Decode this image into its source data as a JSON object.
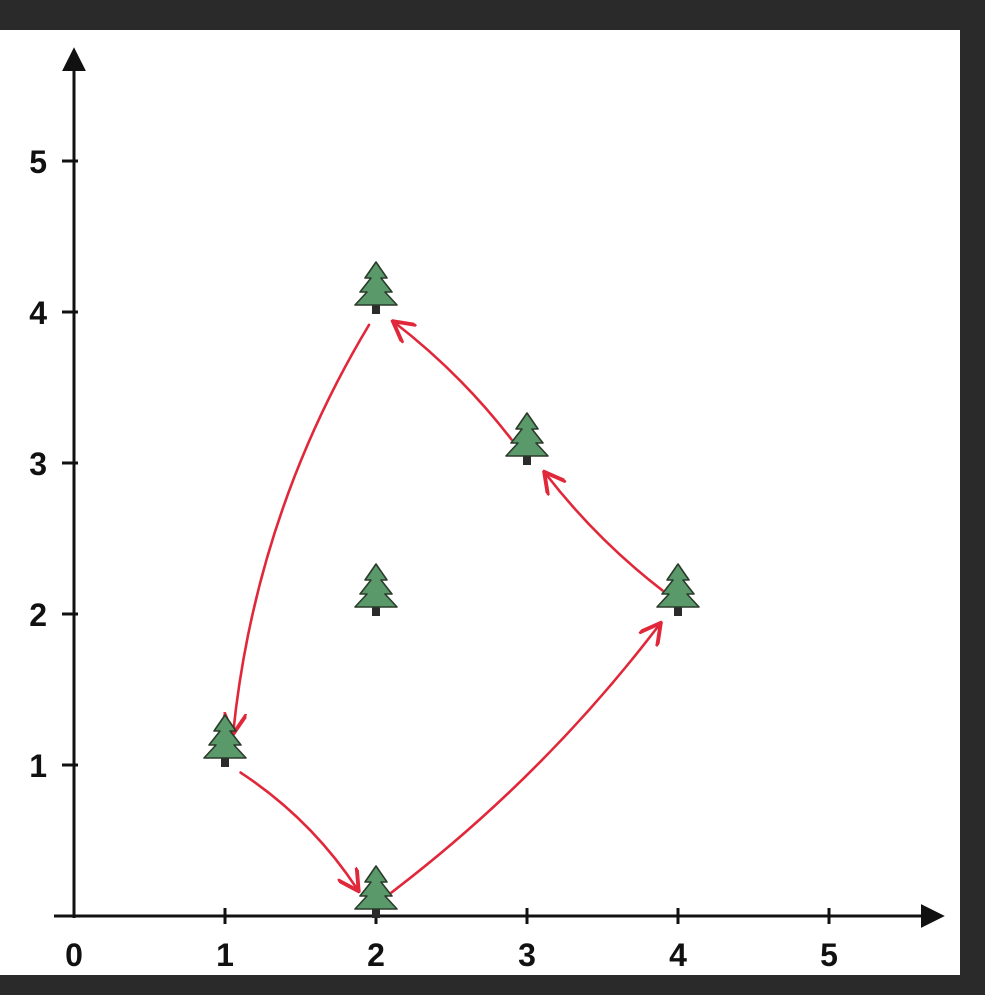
{
  "chart_data": {
    "type": "scatter",
    "title": "",
    "xlabel": "",
    "ylabel": "",
    "xlim": [
      0,
      5.5
    ],
    "ylim": [
      0,
      5.6
    ],
    "x_ticks": [
      "0",
      "1",
      "2",
      "3",
      "4",
      "5"
    ],
    "y_ticks": [
      "1",
      "2",
      "3",
      "4",
      "5"
    ],
    "grid": false,
    "marker": "tree-icon",
    "colors": {
      "marker": "#5a9a6a",
      "path": "#e0283a",
      "axis": "#111111"
    },
    "points": [
      {
        "x": 1,
        "y": 1
      },
      {
        "x": 2,
        "y": 0
      },
      {
        "x": 2,
        "y": 2
      },
      {
        "x": 2,
        "y": 4
      },
      {
        "x": 3,
        "y": 3
      },
      {
        "x": 4,
        "y": 2
      }
    ],
    "hull_path": [
      {
        "from": [
          2,
          4
        ],
        "to": [
          1,
          1
        ]
      },
      {
        "from": [
          1,
          1
        ],
        "to": [
          2,
          0
        ]
      },
      {
        "from": [
          2,
          0
        ],
        "to": [
          4,
          2
        ]
      },
      {
        "from": [
          4,
          2
        ],
        "to": [
          3,
          3
        ]
      },
      {
        "from": [
          3,
          3
        ],
        "to": [
          2,
          4
        ]
      }
    ]
  }
}
